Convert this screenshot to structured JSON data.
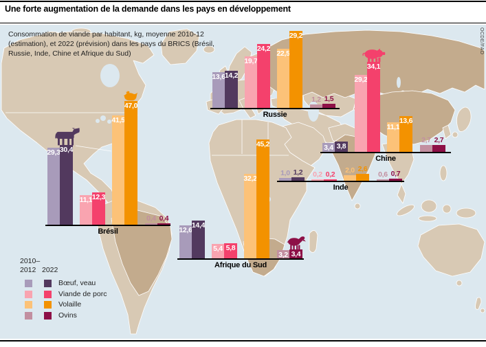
{
  "header": {
    "title": "Une forte augmentation de la demande dans les pays en développement"
  },
  "subtitle": "Consommation de viande par habitant, kg, moyenne 2010-12 (estimation), et 2022 (prévision) dans les pays du BRICS (Brésil, Russie, Inde, Chine et Afrique du Sud)",
  "source": {
    "label": "OCDE/FAO"
  },
  "legend": {
    "year_col1_line1": "2010–",
    "year_col1_line2": "2012",
    "year_col2": "2022"
  },
  "map": {
    "sea_color": "#dce8ef",
    "land_color": "#d8c9b4",
    "brics_color": "#c3ab8d",
    "highlighted_countries": [
      "Brésil",
      "Russie",
      "Inde",
      "Chine",
      "Afrique du Sud"
    ]
  },
  "chart_data": {
    "type": "bar",
    "title": "Une forte augmentation de la demande dans les pays en développement",
    "subtitle": "Consommation de viande par habitant, kg, moyenne 2010-12 (estimation), et 2022 (prévision) dans les pays du BRICS",
    "unit": "kg par habitant",
    "decimal_separator": ",",
    "series": [
      "2010–2012",
      "2022"
    ],
    "categories": [
      {
        "label": "Bœuf, veau",
        "color_2010_12": "#a89bba",
        "color_2022": "#52395e"
      },
      {
        "label": "Viande de porc",
        "color_2010_12": "#f9a4b0",
        "color_2022": "#f4416c"
      },
      {
        "label": "Volaille",
        "color_2010_12": "#fcc278",
        "color_2022": "#f39200"
      },
      {
        "label": "Ovins",
        "color_2010_12": "#c28fa0",
        "color_2022": "#8d1047"
      }
    ],
    "countries": [
      {
        "name": "Brésil",
        "values_2010_12": [
          29.3,
          11.1,
          41.5,
          0.4
        ],
        "values_2022": [
          30.4,
          12.3,
          47.0,
          0.4
        ]
      },
      {
        "name": "Russie",
        "values_2010_12": [
          13.6,
          19.7,
          22.5,
          1.2
        ],
        "values_2022": [
          14.2,
          24.2,
          29.2,
          1.5
        ]
      },
      {
        "name": "Inde",
        "values_2010_12": [
          1.0,
          0.2,
          2.0,
          0.6
        ],
        "values_2022": [
          1.2,
          0.2,
          2.6,
          0.7
        ]
      },
      {
        "name": "Chine",
        "values_2010_12": [
          3.4,
          29.2,
          11.1,
          2.7
        ],
        "values_2022": [
          3.8,
          34.1,
          13.6,
          2.7
        ]
      },
      {
        "name": "Afrique du Sud",
        "values_2010_12": [
          12.6,
          5.4,
          32.2,
          3.2
        ],
        "values_2022": [
          14.4,
          5.8,
          45.2,
          3.4
        ]
      }
    ],
    "icons": [
      {
        "type": "cow",
        "country": "Brésil",
        "category_index": 0
      },
      {
        "type": "hen",
        "country": "Brésil",
        "category_index": 2
      },
      {
        "type": "pig",
        "country": "Chine",
        "category_index": 1
      },
      {
        "type": "sheep",
        "country": "Afrique du Sud",
        "category_index": 3
      }
    ]
  }
}
